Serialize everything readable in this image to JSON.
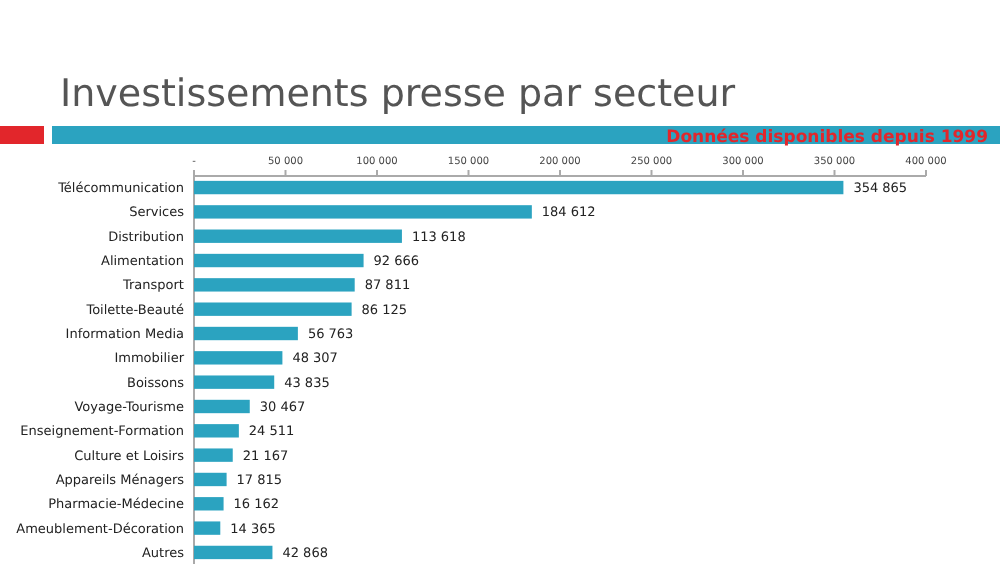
{
  "chart_data": {
    "type": "bar",
    "orientation": "horizontal",
    "title": "Investissements presse par secteur",
    "subtitle": "Données disponibles depuis 1999",
    "categories": [
      "Télécommunication",
      "Services",
      "Distribution",
      "Alimentation",
      "Transport",
      "Toilette-Beauté",
      "Information Media",
      "Immobilier",
      "Boissons",
      "Voyage-Tourisme",
      "Enseignement-Formation",
      "Culture et Loisirs",
      "Appareils Ménagers",
      "Pharmacie-Médecine",
      "Ameublement-Décoration",
      "Autres"
    ],
    "values": [
      354865,
      184612,
      113618,
      92666,
      87811,
      86125,
      56763,
      48307,
      43835,
      30467,
      24511,
      21167,
      17815,
      16162,
      14365,
      42868
    ],
    "value_labels": [
      "354 865",
      "184 612",
      "113 618",
      "92 666",
      "87 811",
      "86 125",
      "56 763",
      "48 307",
      "43 835",
      "30 467",
      "24 511",
      "21 167",
      "17 815",
      "16 162",
      "14 365",
      "42 868"
    ],
    "color": "#2ba3c0",
    "xlim": [
      0,
      400000
    ],
    "xticks": [
      {
        "value": 0,
        "label": "-"
      },
      {
        "value": 50000,
        "label": "50 000"
      },
      {
        "value": 100000,
        "label": "100 000"
      },
      {
        "value": 150000,
        "label": "150 000"
      },
      {
        "value": 200000,
        "label": "200 000"
      },
      {
        "value": 250000,
        "label": "250 000"
      },
      {
        "value": 300000,
        "label": "300 000"
      },
      {
        "value": 350000,
        "label": "350 000"
      },
      {
        "value": 400000,
        "label": "400 000"
      }
    ]
  }
}
